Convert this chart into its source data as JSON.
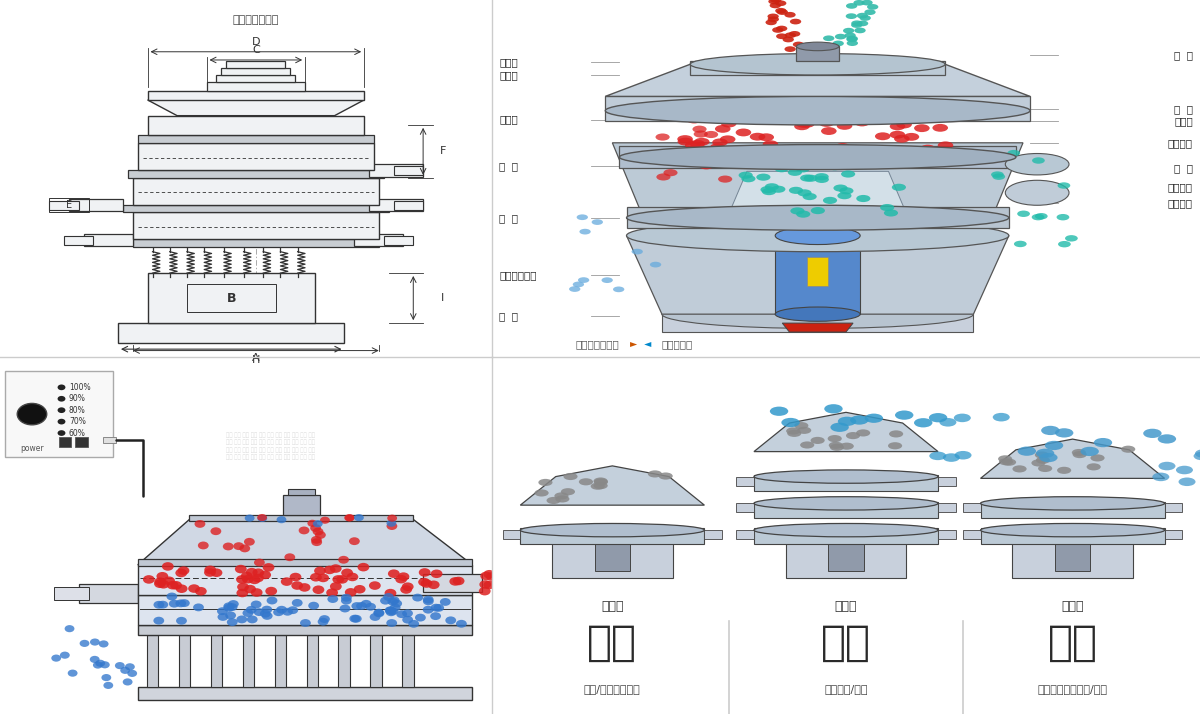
{
  "bg_color": "#ffffff",
  "divider_color": "#bbbbbb",
  "top_left_desc": "外形尺寸示意图",
  "top_right_desc": "结构示意图",
  "right_labels_left": [
    "进料口",
    "防尘盖",
    "出料口",
    "束  环",
    "弹  簧",
    "运输固定螺栓",
    "机  座"
  ],
  "right_labels_right": [
    "筛  网",
    "网  架",
    "加重块",
    "上部重锤",
    "筛  盘",
    "振动电机",
    "下部重锤"
  ],
  "bottom_captions": [
    "单层式",
    "三层式",
    "双层式"
  ],
  "bottom_titles": [
    "分级",
    "过滤",
    "除杂"
  ],
  "bottom_descs": [
    "颗粒/粉末准确分级",
    "去除异物/结块",
    "去除液体中的颗粒/异物"
  ],
  "controller_labels": [
    "100%",
    "90%",
    "80%",
    "70%",
    "60%"
  ],
  "controller_label_bottom": "power",
  "red_particle": "#dd2222",
  "blue_particle": "#3377cc",
  "teal_particle": "#22bbaa",
  "red_spray": "#cc2211",
  "teal_spray": "#33bbaa"
}
